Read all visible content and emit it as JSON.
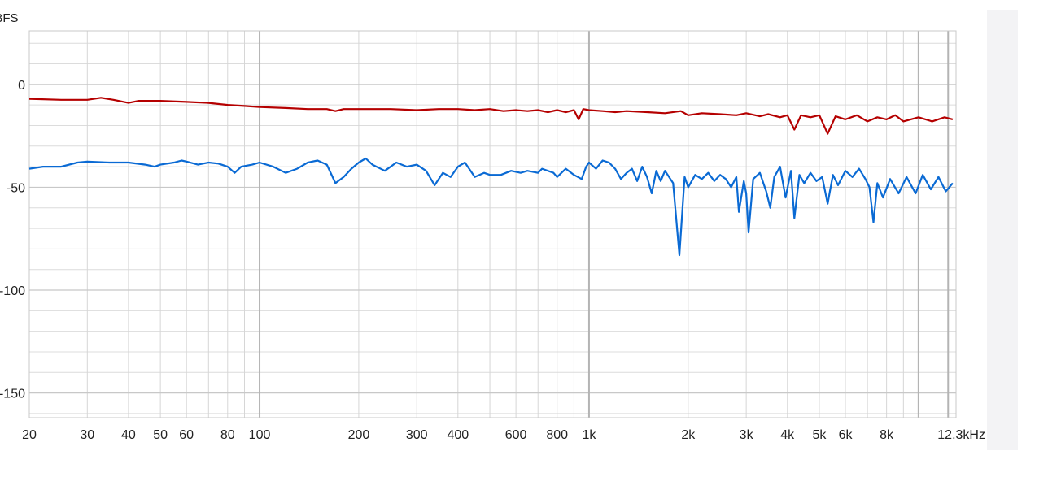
{
  "chart_data": {
    "type": "line",
    "ylabel": "dBFS",
    "xscale": "log",
    "xlim": [
      20,
      13000
    ],
    "ylim": [
      -162,
      26
    ],
    "grid": true,
    "x_ticks": [
      {
        "v": 20,
        "label": "20"
      },
      {
        "v": 30,
        "label": "30"
      },
      {
        "v": 40,
        "label": "40"
      },
      {
        "v": 50,
        "label": "50"
      },
      {
        "v": 60,
        "label": "60"
      },
      {
        "v": 80,
        "label": "80"
      },
      {
        "v": 100,
        "label": "100"
      },
      {
        "v": 200,
        "label": "200"
      },
      {
        "v": 300,
        "label": "300"
      },
      {
        "v": 400,
        "label": "400"
      },
      {
        "v": 600,
        "label": "600"
      },
      {
        "v": 800,
        "label": "800"
      },
      {
        "v": 1000,
        "label": "1k"
      },
      {
        "v": 2000,
        "label": "2k"
      },
      {
        "v": 3000,
        "label": "3k"
      },
      {
        "v": 4000,
        "label": "4k"
      },
      {
        "v": 5000,
        "label": "5k"
      },
      {
        "v": 6000,
        "label": "6k"
      },
      {
        "v": 8000,
        "label": "8k"
      },
      {
        "v": 12300,
        "label": "12.3kHz"
      }
    ],
    "y_ticks": [
      {
        "v": 0,
        "label": "0"
      },
      {
        "v": -50,
        "label": "-50"
      },
      {
        "v": -100,
        "label": "-100"
      },
      {
        "v": -150,
        "label": "-150"
      }
    ],
    "series": [
      {
        "color": "#b50000",
        "points": [
          [
            20,
            -7
          ],
          [
            25,
            -7.5
          ],
          [
            30,
            -7.5
          ],
          [
            33,
            -6.5
          ],
          [
            36,
            -7.5
          ],
          [
            40,
            -9
          ],
          [
            43,
            -8
          ],
          [
            50,
            -8
          ],
          [
            60,
            -8.5
          ],
          [
            70,
            -9
          ],
          [
            80,
            -10
          ],
          [
            90,
            -10.5
          ],
          [
            100,
            -11
          ],
          [
            120,
            -11.5
          ],
          [
            140,
            -12
          ],
          [
            160,
            -12
          ],
          [
            170,
            -13
          ],
          [
            180,
            -12
          ],
          [
            200,
            -12
          ],
          [
            250,
            -12
          ],
          [
            300,
            -12.5
          ],
          [
            350,
            -12
          ],
          [
            400,
            -12
          ],
          [
            450,
            -12.5
          ],
          [
            500,
            -12
          ],
          [
            550,
            -13
          ],
          [
            600,
            -12.5
          ],
          [
            650,
            -13
          ],
          [
            700,
            -12.5
          ],
          [
            750,
            -13.5
          ],
          [
            800,
            -12.5
          ],
          [
            850,
            -13.5
          ],
          [
            900,
            -12.5
          ],
          [
            930,
            -17
          ],
          [
            960,
            -12
          ],
          [
            1000,
            -12.5
          ],
          [
            1100,
            -13
          ],
          [
            1200,
            -13.5
          ],
          [
            1300,
            -13
          ],
          [
            1500,
            -13.5
          ],
          [
            1700,
            -14
          ],
          [
            1900,
            -13
          ],
          [
            2000,
            -15
          ],
          [
            2200,
            -14
          ],
          [
            2500,
            -14.5
          ],
          [
            2800,
            -15
          ],
          [
            3000,
            -14
          ],
          [
            3300,
            -15.5
          ],
          [
            3500,
            -14.5
          ],
          [
            3800,
            -16
          ],
          [
            4000,
            -15
          ],
          [
            4200,
            -22
          ],
          [
            4400,
            -15
          ],
          [
            4700,
            -16
          ],
          [
            5000,
            -15
          ],
          [
            5300,
            -24
          ],
          [
            5600,
            -15.5
          ],
          [
            6000,
            -17
          ],
          [
            6500,
            -15
          ],
          [
            7000,
            -18
          ],
          [
            7500,
            -16
          ],
          [
            8000,
            -17
          ],
          [
            8500,
            -15
          ],
          [
            9000,
            -18
          ],
          [
            10000,
            -16
          ],
          [
            11000,
            -18
          ],
          [
            12000,
            -16
          ],
          [
            12700,
            -17
          ]
        ]
      },
      {
        "color": "#0a6ad4",
        "points": [
          [
            20,
            -41
          ],
          [
            22,
            -40
          ],
          [
            25,
            -40
          ],
          [
            28,
            -38
          ],
          [
            30,
            -37.5
          ],
          [
            35,
            -38
          ],
          [
            40,
            -38
          ],
          [
            45,
            -39
          ],
          [
            48,
            -40
          ],
          [
            50,
            -39
          ],
          [
            55,
            -38
          ],
          [
            58,
            -37
          ],
          [
            60,
            -37.5
          ],
          [
            65,
            -39
          ],
          [
            70,
            -38
          ],
          [
            75,
            -38.5
          ],
          [
            80,
            -40
          ],
          [
            84,
            -43
          ],
          [
            88,
            -40
          ],
          [
            95,
            -39
          ],
          [
            100,
            -38
          ],
          [
            110,
            -40
          ],
          [
            120,
            -43
          ],
          [
            130,
            -41
          ],
          [
            140,
            -38
          ],
          [
            150,
            -37
          ],
          [
            160,
            -39
          ],
          [
            170,
            -48
          ],
          [
            180,
            -45
          ],
          [
            190,
            -41
          ],
          [
            200,
            -38
          ],
          [
            210,
            -36
          ],
          [
            220,
            -39
          ],
          [
            240,
            -42
          ],
          [
            260,
            -38
          ],
          [
            280,
            -40
          ],
          [
            300,
            -39
          ],
          [
            320,
            -42
          ],
          [
            340,
            -49
          ],
          [
            360,
            -43
          ],
          [
            380,
            -45
          ],
          [
            400,
            -40
          ],
          [
            420,
            -38
          ],
          [
            450,
            -45
          ],
          [
            480,
            -43
          ],
          [
            500,
            -44
          ],
          [
            540,
            -44
          ],
          [
            580,
            -42
          ],
          [
            620,
            -43
          ],
          [
            650,
            -42
          ],
          [
            700,
            -43
          ],
          [
            720,
            -41
          ],
          [
            780,
            -43
          ],
          [
            800,
            -45
          ],
          [
            850,
            -41
          ],
          [
            900,
            -44
          ],
          [
            950,
            -46
          ],
          [
            980,
            -40
          ],
          [
            1000,
            -38
          ],
          [
            1050,
            -41
          ],
          [
            1100,
            -37
          ],
          [
            1150,
            -38
          ],
          [
            1200,
            -41
          ],
          [
            1250,
            -46
          ],
          [
            1300,
            -43
          ],
          [
            1350,
            -41
          ],
          [
            1400,
            -47
          ],
          [
            1450,
            -40
          ],
          [
            1500,
            -45
          ],
          [
            1550,
            -53
          ],
          [
            1600,
            -42
          ],
          [
            1650,
            -47
          ],
          [
            1700,
            -42
          ],
          [
            1800,
            -48
          ],
          [
            1880,
            -83
          ],
          [
            1950,
            -45
          ],
          [
            2000,
            -50
          ],
          [
            2100,
            -44
          ],
          [
            2200,
            -46
          ],
          [
            2300,
            -43
          ],
          [
            2400,
            -47
          ],
          [
            2500,
            -44
          ],
          [
            2600,
            -46
          ],
          [
            2700,
            -50
          ],
          [
            2800,
            -45
          ],
          [
            2850,
            -62
          ],
          [
            2950,
            -47
          ],
          [
            3000,
            -53
          ],
          [
            3050,
            -72
          ],
          [
            3150,
            -46
          ],
          [
            3300,
            -43
          ],
          [
            3450,
            -52
          ],
          [
            3550,
            -60
          ],
          [
            3650,
            -45
          ],
          [
            3800,
            -40
          ],
          [
            3950,
            -55
          ],
          [
            4100,
            -42
          ],
          [
            4200,
            -65
          ],
          [
            4350,
            -44
          ],
          [
            4500,
            -48
          ],
          [
            4700,
            -43
          ],
          [
            4900,
            -47
          ],
          [
            5100,
            -45
          ],
          [
            5300,
            -58
          ],
          [
            5500,
            -44
          ],
          [
            5700,
            -49
          ],
          [
            6000,
            -42
          ],
          [
            6300,
            -45
          ],
          [
            6600,
            -41
          ],
          [
            6900,
            -46
          ],
          [
            7100,
            -50
          ],
          [
            7300,
            -67
          ],
          [
            7500,
            -48
          ],
          [
            7800,
            -55
          ],
          [
            8200,
            -46
          ],
          [
            8700,
            -53
          ],
          [
            9200,
            -45
          ],
          [
            9800,
            -53
          ],
          [
            10300,
            -44
          ],
          [
            10900,
            -51
          ],
          [
            11500,
            -45
          ],
          [
            12100,
            -52
          ],
          [
            12700,
            -48
          ]
        ]
      }
    ]
  }
}
